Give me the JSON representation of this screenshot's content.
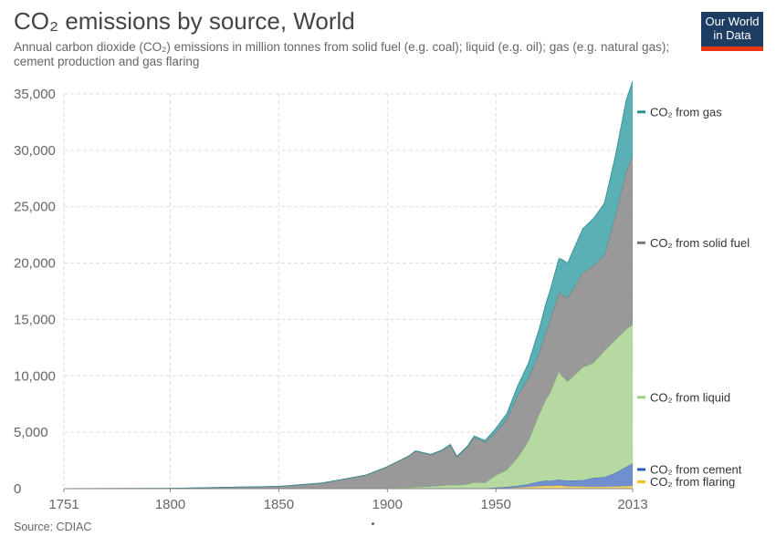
{
  "header": {
    "title": "CO₂ emissions by source, World",
    "subtitle": "Annual carbon dioxide (CO₂) emissions in million tonnes from solid fuel (e.g. coal); liquid (e.g. oil); gas (e.g. natural gas); cement production and gas flaring"
  },
  "logo": {
    "line1": "Our World",
    "line2": "in Data"
  },
  "footer": {
    "source": "Source: CDIAC"
  },
  "colors": {
    "gas": "#5ab0b4",
    "gas_line": "#2b8a8f",
    "solid": "#999999",
    "solid_line": "#6f6f6f",
    "liquid": "#b5d9a0",
    "liquid_line": "#8cc273",
    "cement": "#6f8fcf",
    "cement_line": "#3f63b0",
    "flaring": "#f3d46b",
    "flaring_line": "#e2b92c",
    "legend_gas": "#2a8f94",
    "legend_solid": "#777777",
    "legend_liquid": "#9cd17f",
    "legend_cement": "#2b5bb5",
    "legend_flaring": "#f0c419"
  },
  "chart_data": {
    "type": "area",
    "stacked": true,
    "x": [
      1751,
      1800,
      1850,
      1870,
      1880,
      1890,
      1900,
      1910,
      1913,
      1920,
      1925,
      1929,
      1932,
      1937,
      1940,
      1945,
      1950,
      1955,
      1960,
      1965,
      1970,
      1973,
      1975,
      1979,
      1980,
      1983,
      1990,
      1995,
      2000,
      2005,
      2010,
      2013
    ],
    "series": [
      {
        "key": "flaring",
        "name": "CO₂ from flaring",
        "values": [
          0,
          0,
          0,
          0,
          0,
          0,
          0,
          0,
          0,
          0,
          0,
          0,
          0,
          0,
          0,
          0,
          20,
          40,
          90,
          150,
          220,
          250,
          240,
          280,
          250,
          200,
          180,
          160,
          170,
          190,
          230,
          250
        ]
      },
      {
        "key": "cement",
        "name": "CO₂ from cement",
        "values": [
          0,
          0,
          0,
          0,
          0,
          0,
          0,
          0,
          0,
          0,
          0,
          0,
          0,
          0,
          0,
          20,
          70,
          110,
          160,
          250,
          400,
          450,
          450,
          520,
          520,
          500,
          570,
          800,
          850,
          1200,
          1700,
          2000
        ]
      },
      {
        "key": "liquid",
        "name": "CO₂ from liquid",
        "values": [
          0,
          0,
          0,
          0,
          0,
          0,
          40,
          90,
          120,
          190,
          250,
          340,
          290,
          400,
          550,
          500,
          1100,
          1500,
          2500,
          3800,
          6000,
          7200,
          7800,
          9600,
          9300,
          8800,
          10000,
          10200,
          11200,
          11800,
          12200,
          12300
        ]
      },
      {
        "key": "solid",
        "name": "CO₂ from solid fuel",
        "values": [
          10,
          30,
          200,
          500,
          850,
          1200,
          1900,
          2800,
          3200,
          2800,
          3100,
          3500,
          2500,
          3300,
          4000,
          3600,
          3800,
          4500,
          5500,
          5600,
          5500,
          6000,
          6500,
          7000,
          7200,
          7400,
          8400,
          8600,
          8500,
          11000,
          14000,
          15000
        ]
      },
      {
        "key": "gas",
        "name": "CO₂ from gas",
        "values": [
          0,
          0,
          0,
          0,
          0,
          0,
          10,
          30,
          40,
          50,
          60,
          80,
          80,
          100,
          130,
          150,
          350,
          500,
          850,
          1350,
          2100,
          2500,
          2600,
          3000,
          3100,
          3100,
          3900,
          4200,
          4600,
          5300,
          6300,
          6600
        ]
      }
    ],
    "xlim": [
      1751,
      2013
    ],
    "ylim": [
      0,
      35000
    ],
    "xticks": [
      1751,
      1800,
      1850,
      1900,
      1950,
      2013
    ],
    "yticks": [
      0,
      5000,
      10000,
      15000,
      20000,
      25000,
      30000,
      35000
    ],
    "ytick_labels": [
      "0",
      "5,000",
      "10,000",
      "15,000",
      "20,000",
      "25,000",
      "30,000",
      "35,000"
    ],
    "legend": [
      {
        "key": "gas",
        "label": "CO₂ from gas",
        "at": 33400
      },
      {
        "key": "solid",
        "label": "CO₂ from solid fuel",
        "at": 21800
      },
      {
        "key": "liquid",
        "label": "CO₂ from liquid",
        "at": 8100
      },
      {
        "key": "cement",
        "label": "CO₂ from cement",
        "at": 1700
      },
      {
        "key": "flaring",
        "label": "CO₂ from flaring",
        "at": 600
      }
    ],
    "grid": true,
    "legend_position": "right"
  }
}
